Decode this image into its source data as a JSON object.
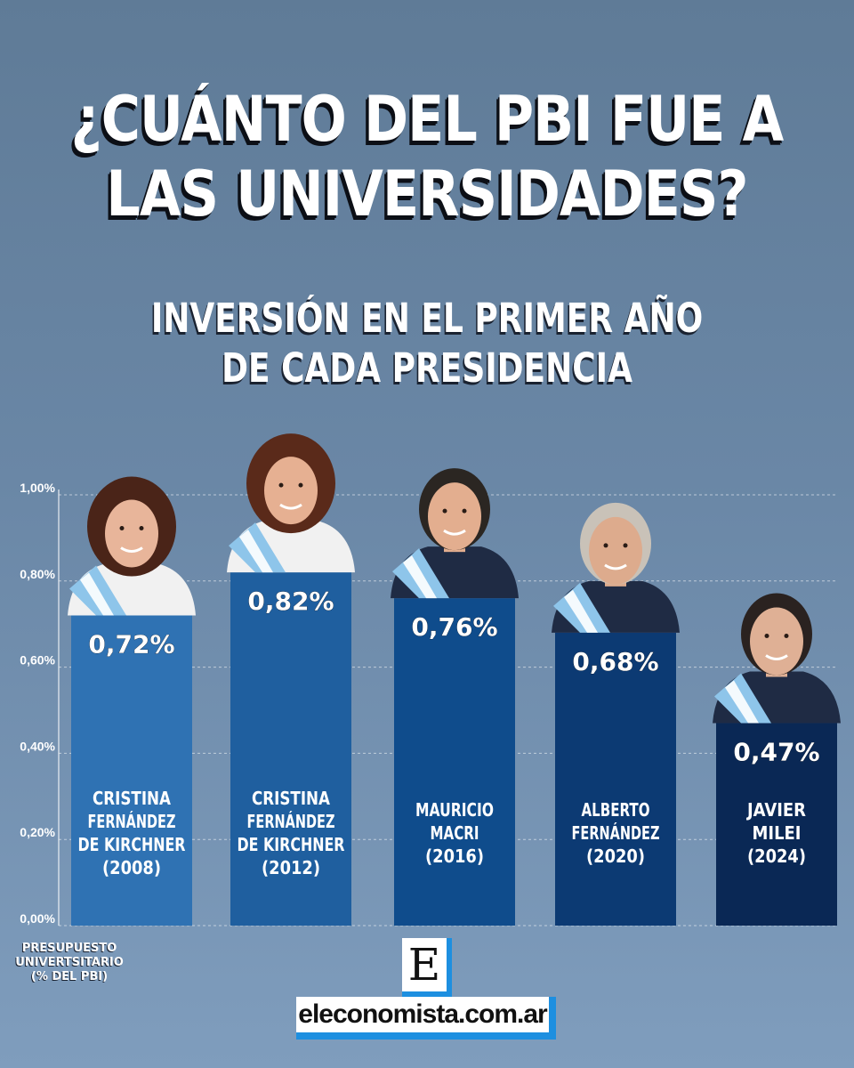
{
  "title_lines": [
    "¿CUÁNTO DEL PBI FUE A",
    "LAS UNIVERSIDADES?"
  ],
  "subtitle_lines": [
    "INVERSIÓN EN EL PRIMER AÑO",
    "DE CADA PRESIDENCIA"
  ],
  "ylabel_lines": [
    "PRESUPUESTO",
    "UNIVERTSITARIO",
    "(% DEL PBI)"
  ],
  "brand": {
    "letter": "E",
    "site": "eleconomista.com.ar",
    "accent_color": "#1d8fe0"
  },
  "chart_data": {
    "type": "bar",
    "title": "¿CUÁNTO DEL PBI FUE A LAS UNIVERSIDADES?",
    "subtitle": "INVERSIÓN EN EL PRIMER AÑO DE CADA PRESIDENCIA",
    "ylabel": "PRESUPUESTO UNIVERTSITARIO (% DEL PBI)",
    "xlabel": "",
    "ylim": [
      0,
      1.0
    ],
    "yticks": [
      0,
      0.2,
      0.4,
      0.6,
      0.8,
      1.0
    ],
    "ytick_labels": [
      "0,00%",
      "0,20%",
      "0,40%",
      "0,60%",
      "0,80%",
      "1,00%"
    ],
    "grid": true,
    "categories": [
      [
        "CRISTINA",
        "FERNÁNDEZ",
        "DE KIRCHNER",
        "(2008)"
      ],
      [
        "CRISTINA",
        "FERNÁNDEZ",
        "DE KIRCHNER",
        "(2012)"
      ],
      [
        "MAURICIO",
        "MACRI",
        "(2016)"
      ],
      [
        "ALBERTO",
        "FERNÁNDEZ",
        "(2020)"
      ],
      [
        "JAVIER",
        "MILEI",
        "(2024)"
      ]
    ],
    "values": [
      0.72,
      0.82,
      0.76,
      0.68,
      0.47
    ],
    "value_labels": [
      "0,72%",
      "0,82%",
      "0,76%",
      "0,68%",
      "0,47%"
    ],
    "bar_colors": [
      "#2f72b3",
      "#1f5f9f",
      "#0f4c8c",
      "#0c3a73",
      "#0a2855"
    ]
  }
}
